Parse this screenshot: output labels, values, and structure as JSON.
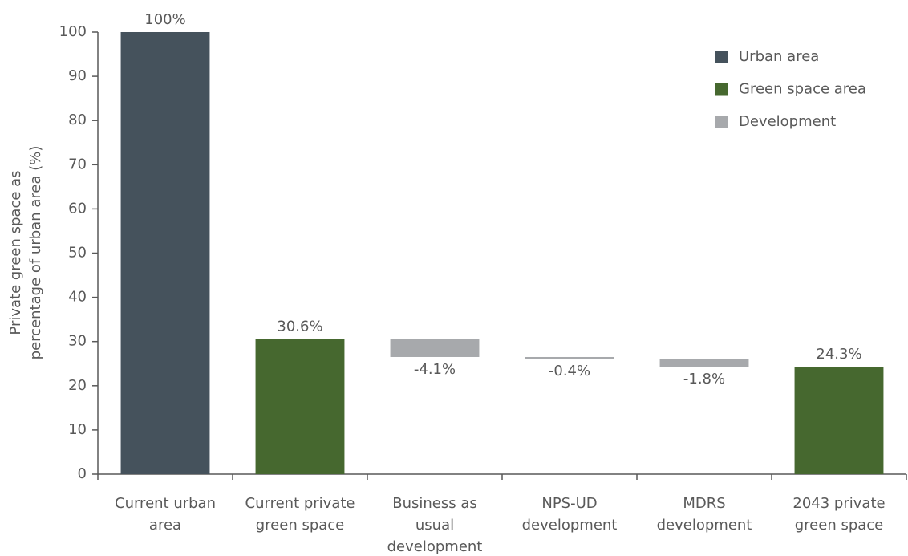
{
  "chart_data": {
    "type": "waterfall",
    "y_label": [
      "Private green space as",
      "percentage of urban area (%)"
    ],
    "categories": [
      [
        "Current urban",
        "area"
      ],
      [
        "Current private",
        "green space"
      ],
      [
        "Business as",
        "usual",
        "development"
      ],
      [
        "NPS-UD",
        "development"
      ],
      [
        "MDRS",
        "development"
      ],
      [
        "2043 private",
        "green space"
      ]
    ],
    "measure": [
      "absolute",
      "absolute",
      "relative",
      "relative",
      "relative",
      "total"
    ],
    "values": [
      100,
      30.6,
      -4.1,
      -0.4,
      -1.8,
      24.3
    ],
    "value_labels": [
      "100%",
      "30.6%",
      "-4.1%",
      "-0.4%",
      "-1.8%",
      "24.3%"
    ],
    "colors": [
      "#45525c",
      "#46682f",
      "#a7a9ac",
      "#a7a9ac",
      "#a7a9ac",
      "#46682f"
    ],
    "legend": [
      {
        "name": "Urban area",
        "color": "#45525c"
      },
      {
        "name": "Green space area",
        "color": "#46682f"
      },
      {
        "name": "Development",
        "color": "#a7a9ac"
      }
    ],
    "legend_position": "upper right",
    "ylim": [
      0,
      100
    ],
    "yticks": [
      0,
      10,
      20,
      30,
      40,
      50,
      60,
      70,
      80,
      90,
      100
    ],
    "grid": false
  }
}
